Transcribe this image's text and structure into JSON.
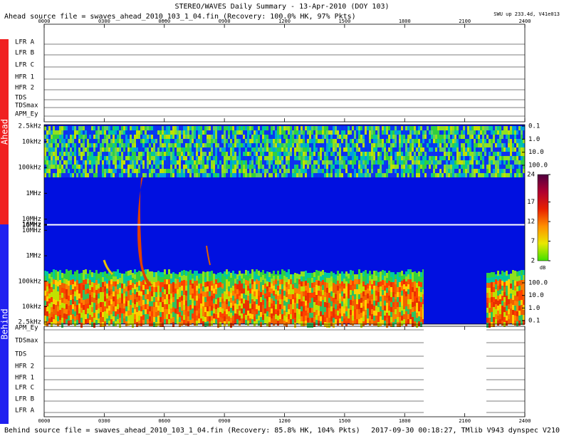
{
  "chart_data": {
    "type": "spectrogram",
    "title": "STEREO/WAVES Daily Summary - 13-Apr-2010 (DOY 103)",
    "subtitle": "Ahead source file = swaves_ahead_2010_103_1_04.fin (Recovery: 100.0% HK, 97% Pkts)",
    "status": "SWU up 233.4d, V41e013",
    "footer_left": "Behind source file = swaves_ahead_2010_103_1_04.fin (Recovery: 85.8% HK, 104% Pkts)",
    "footer_right": "2017-09-30 00:18:27, TMlib V943 dynspec V210",
    "side_labels": [
      "Ahead",
      "Behind"
    ],
    "xlim": [
      0,
      24
    ],
    "xticks": [
      {
        "value": 0,
        "label": "0000"
      },
      {
        "value": 3,
        "label": "0300"
      },
      {
        "value": 6,
        "label": "0600"
      },
      {
        "value": 9,
        "label": "0900"
      },
      {
        "value": 12,
        "label": "1200"
      },
      {
        "value": 15,
        "label": "1500"
      },
      {
        "value": 18,
        "label": "1800"
      },
      {
        "value": 21,
        "label": "2100"
      },
      {
        "value": 24,
        "label": "2400"
      }
    ],
    "ahead_rows": [
      "LFR A",
      "LFR B",
      "LFR C",
      "HFR 1",
      "HFR 2",
      "TDS",
      "TDSmax",
      "APM_Ey"
    ],
    "behind_rows": [
      "APM_Ey",
      "TDSmax",
      "TDS",
      "HFR 2",
      "HFR 1",
      "LFR C",
      "LFR B",
      "LFR A"
    ],
    "log": true,
    "ylim": [
      2500,
      16000000
    ],
    "yticks": [
      {
        "value": 2500,
        "label": "2.5kHz"
      },
      {
        "value": 10000,
        "label": "10kHz"
      },
      {
        "value": 100000,
        "label": "100kHz"
      },
      {
        "value": 1000000,
        "label": "1MHz"
      },
      {
        "value": 10000000,
        "label": "10MHz"
      },
      {
        "value": 16000000,
        "label": "16MHz"
      }
    ],
    "y2lim": [
      0.1,
      100
    ],
    "y2ticks": [
      0.1,
      {
        "value": 1,
        "label": "1.0"
      },
      {
        "value": 10,
        "label": "10.0"
      },
      {
        "value": 100,
        "label": "100.0"
      }
    ],
    "colorbar": {
      "label": "dB",
      "lim": [
        2,
        24
      ],
      "ticks": [
        2,
        7,
        12,
        17,
        24
      ]
    }
  }
}
